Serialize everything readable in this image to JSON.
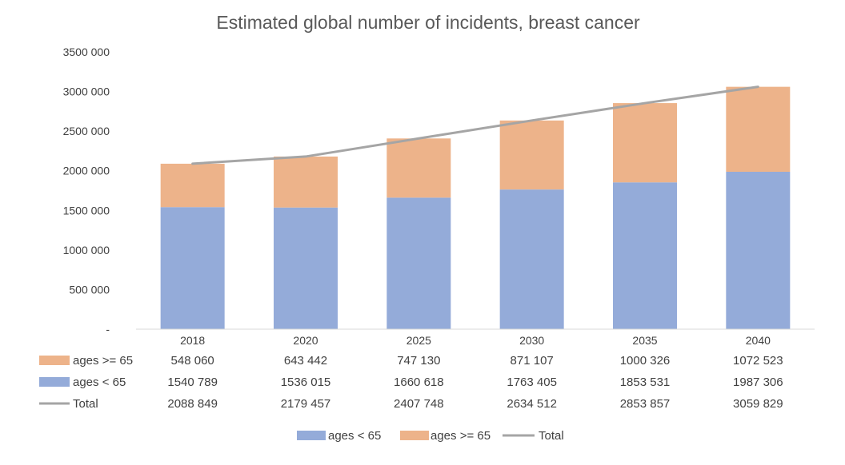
{
  "chart_data": {
    "type": "bar",
    "stacked": true,
    "title": "Estimated global number of incidents, breast cancer",
    "categories": [
      "2018",
      "2020",
      "2025",
      "2030",
      "2035",
      "2040"
    ],
    "series": [
      {
        "name": "ages < 65",
        "kind": "bar",
        "color": "#94ABD9",
        "values": [
          1540789,
          1536015,
          1660618,
          1763405,
          1853531,
          1987306
        ],
        "labels": [
          "1540 789",
          "1536 015",
          "1660 618",
          "1763 405",
          "1853 531",
          "1987 306"
        ]
      },
      {
        "name": "ages >= 65",
        "kind": "bar",
        "color": "#EDB38A",
        "values": [
          548060,
          643442,
          747130,
          871107,
          1000326,
          1072523
        ],
        "labels": [
          "548 060",
          "643 442",
          "747 130",
          "871 107",
          "1000 326",
          "1072 523"
        ]
      },
      {
        "name": "Total",
        "kind": "line",
        "color": "#A5A5A5",
        "values": [
          2088849,
          2179457,
          2407748,
          2634512,
          2853857,
          3059829
        ],
        "labels": [
          "2088 849",
          "2179 457",
          "2407 748",
          "2634 512",
          "2853 857",
          "3059 829"
        ]
      }
    ],
    "ylim": [
      0,
      3500000
    ],
    "yticks": [
      0,
      500000,
      1000000,
      1500000,
      2000000,
      2500000,
      3000000,
      3500000
    ],
    "ytick_labels": [
      "-",
      "500 000",
      "1000 000",
      "1500 000",
      "2000 000",
      "2500 000",
      "3000 000",
      "3500 000"
    ],
    "grid": false,
    "data_table_order": [
      "ages >= 65",
      "ages < 65",
      "Total"
    ],
    "legend_order": [
      "ages < 65",
      "ages >= 65",
      "Total"
    ],
    "legend_position": "bottom"
  }
}
